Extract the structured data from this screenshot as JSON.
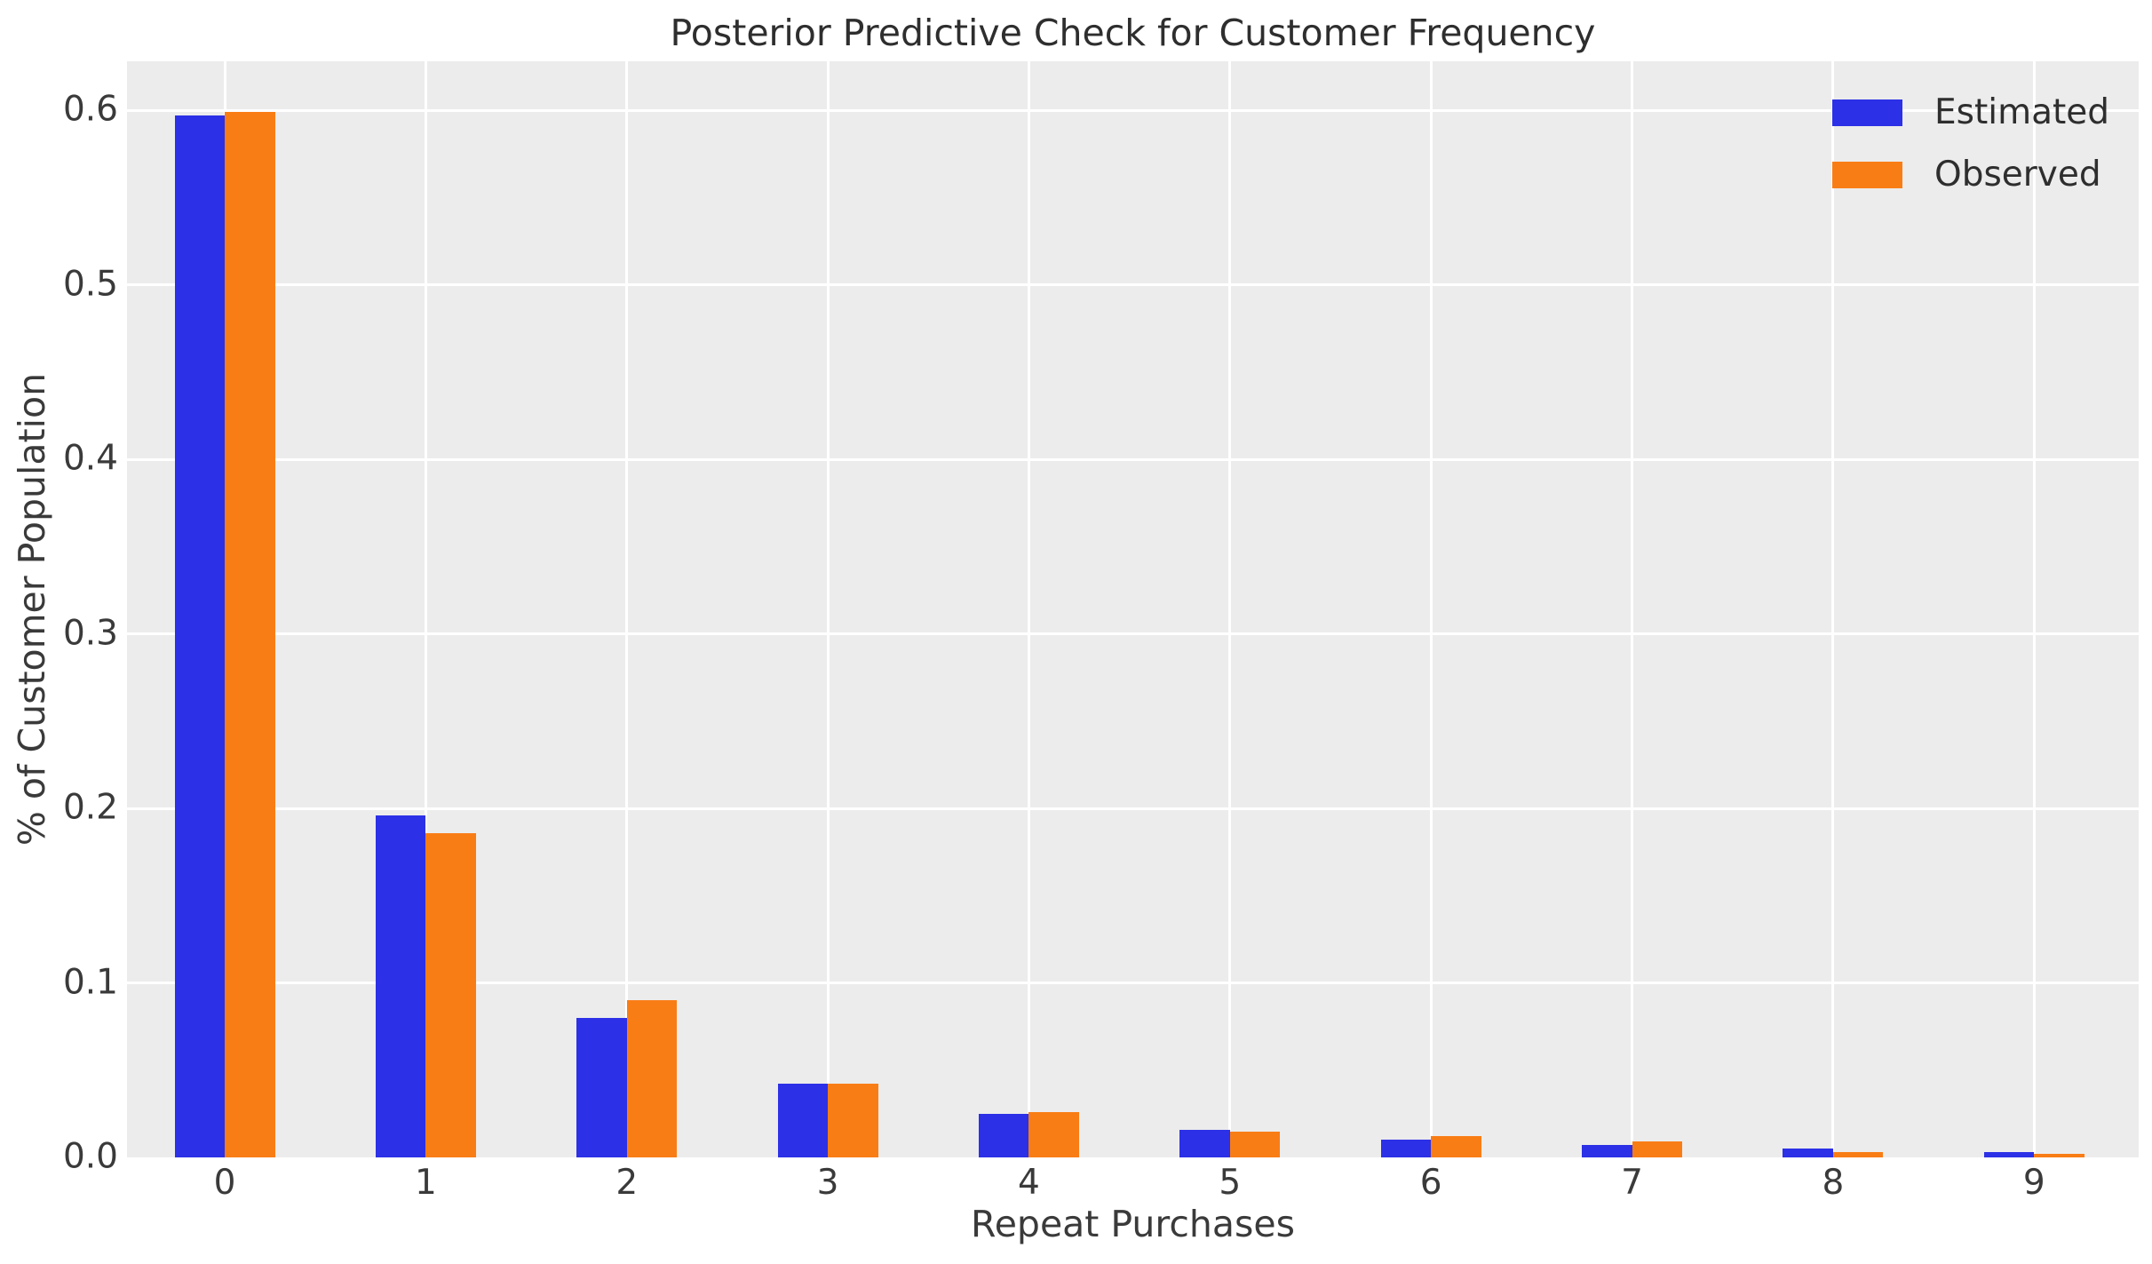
{
  "chart_data": {
    "type": "bar",
    "title": "Posterior Predictive Check for Customer Frequency",
    "xlabel": "Repeat Purchases",
    "ylabel": "% of Customer Population",
    "categories": [
      "0",
      "1",
      "2",
      "3",
      "4",
      "5",
      "6",
      "7",
      "8",
      "9"
    ],
    "series": [
      {
        "name": "Estimated",
        "color": "#2c30e6",
        "values": [
          0.597,
          0.196,
          0.08,
          0.042,
          0.025,
          0.016,
          0.01,
          0.007,
          0.005,
          0.003
        ]
      },
      {
        "name": "Observed",
        "color": "#f97d15",
        "values": [
          0.599,
          0.186,
          0.09,
          0.042,
          0.026,
          0.015,
          0.012,
          0.009,
          0.003,
          0.002
        ]
      }
    ],
    "ylim": [
      0,
      0.628
    ],
    "yticks": [
      "0.0",
      "0.1",
      "0.2",
      "0.3",
      "0.4",
      "0.5",
      "0.6"
    ],
    "legend_position": "upper right",
    "grid": true,
    "colors": {
      "figure_background": "#ffffff",
      "plot_background": "#ececec",
      "gridline": "#ffffff",
      "text": "#3a3a3a"
    }
  }
}
